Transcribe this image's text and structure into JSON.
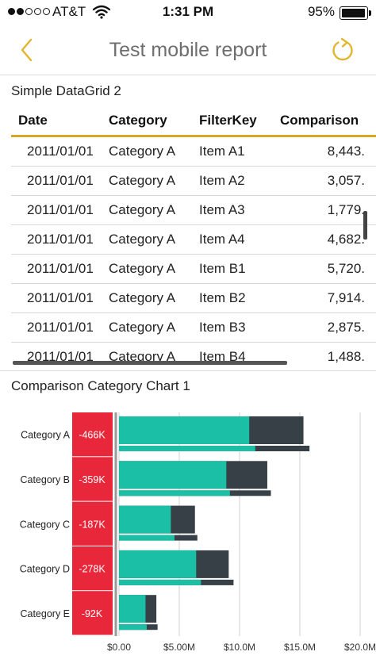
{
  "status_bar": {
    "carrier": "AT&T",
    "time": "1:31 PM",
    "battery_pct": "95%",
    "signal_bars": 2,
    "signal_total": 5,
    "battery_level": 0.95
  },
  "nav": {
    "title": "Test mobile report",
    "back_icon": "chevron-left-icon",
    "refresh_icon": "refresh-icon",
    "accent_color": "#e3b52d"
  },
  "grid": {
    "title": "Simple DataGrid 2",
    "columns": [
      "Date",
      "Category",
      "FilterKey",
      "Comparison"
    ],
    "rows": [
      {
        "date": "2011/01/01",
        "category": "Category A",
        "filterkey": "Item A1",
        "comparison": "8,443."
      },
      {
        "date": "2011/01/01",
        "category": "Category A",
        "filterkey": "Item A2",
        "comparison": "3,057."
      },
      {
        "date": "2011/01/01",
        "category": "Category A",
        "filterkey": "Item A3",
        "comparison": "1,779."
      },
      {
        "date": "2011/01/01",
        "category": "Category A",
        "filterkey": "Item A4",
        "comparison": "4,682."
      },
      {
        "date": "2011/01/01",
        "category": "Category A",
        "filterkey": "Item B1",
        "comparison": "5,720."
      },
      {
        "date": "2011/01/01",
        "category": "Category A",
        "filterkey": "Item B2",
        "comparison": "7,914."
      },
      {
        "date": "2011/01/01",
        "category": "Category A",
        "filterkey": "Item B3",
        "comparison": "2,875."
      },
      {
        "date": "2011/01/01",
        "category": "Category A",
        "filterkey": "Item B4",
        "comparison": "1,488."
      }
    ],
    "header_rule_color": "#d7a726"
  },
  "chart": {
    "title": "Comparison Category Chart 1"
  },
  "chart_data": {
    "type": "bar",
    "orientation": "horizontal",
    "categories": [
      "Category A",
      "Category B",
      "Category C",
      "Category D",
      "Category E"
    ],
    "difference_labels": [
      "-466K",
      "-359K",
      "-187K",
      "-278K",
      "-92K"
    ],
    "series": [
      {
        "name": "",
        "role": "primary-top",
        "values": [
          10.8,
          8.9,
          4.3,
          6.4,
          2.2
        ],
        "color": "#1abfa5"
      },
      {
        "name": "",
        "role": "comparison-top",
        "values": [
          15.3,
          12.3,
          6.3,
          9.1,
          3.1
        ],
        "color": "#364046"
      },
      {
        "name": "",
        "role": "primary-bottom",
        "values": [
          11.3,
          9.2,
          4.6,
          6.8,
          2.3
        ],
        "color": "#1abfa5"
      },
      {
        "name": "",
        "role": "comparison-bottom",
        "values": [
          15.8,
          12.6,
          6.5,
          9.5,
          3.2
        ],
        "color": "#364046"
      }
    ],
    "difference_color": "#e8283a",
    "x_ticks": [
      0,
      5,
      10,
      15,
      20
    ],
    "x_tick_labels": [
      "$0.00",
      "$5.00M",
      "$10.0M",
      "$15.0M",
      "$20.0M"
    ],
    "xlim": [
      0,
      20
    ],
    "xlabel": "",
    "ylabel": "",
    "grid": true
  }
}
